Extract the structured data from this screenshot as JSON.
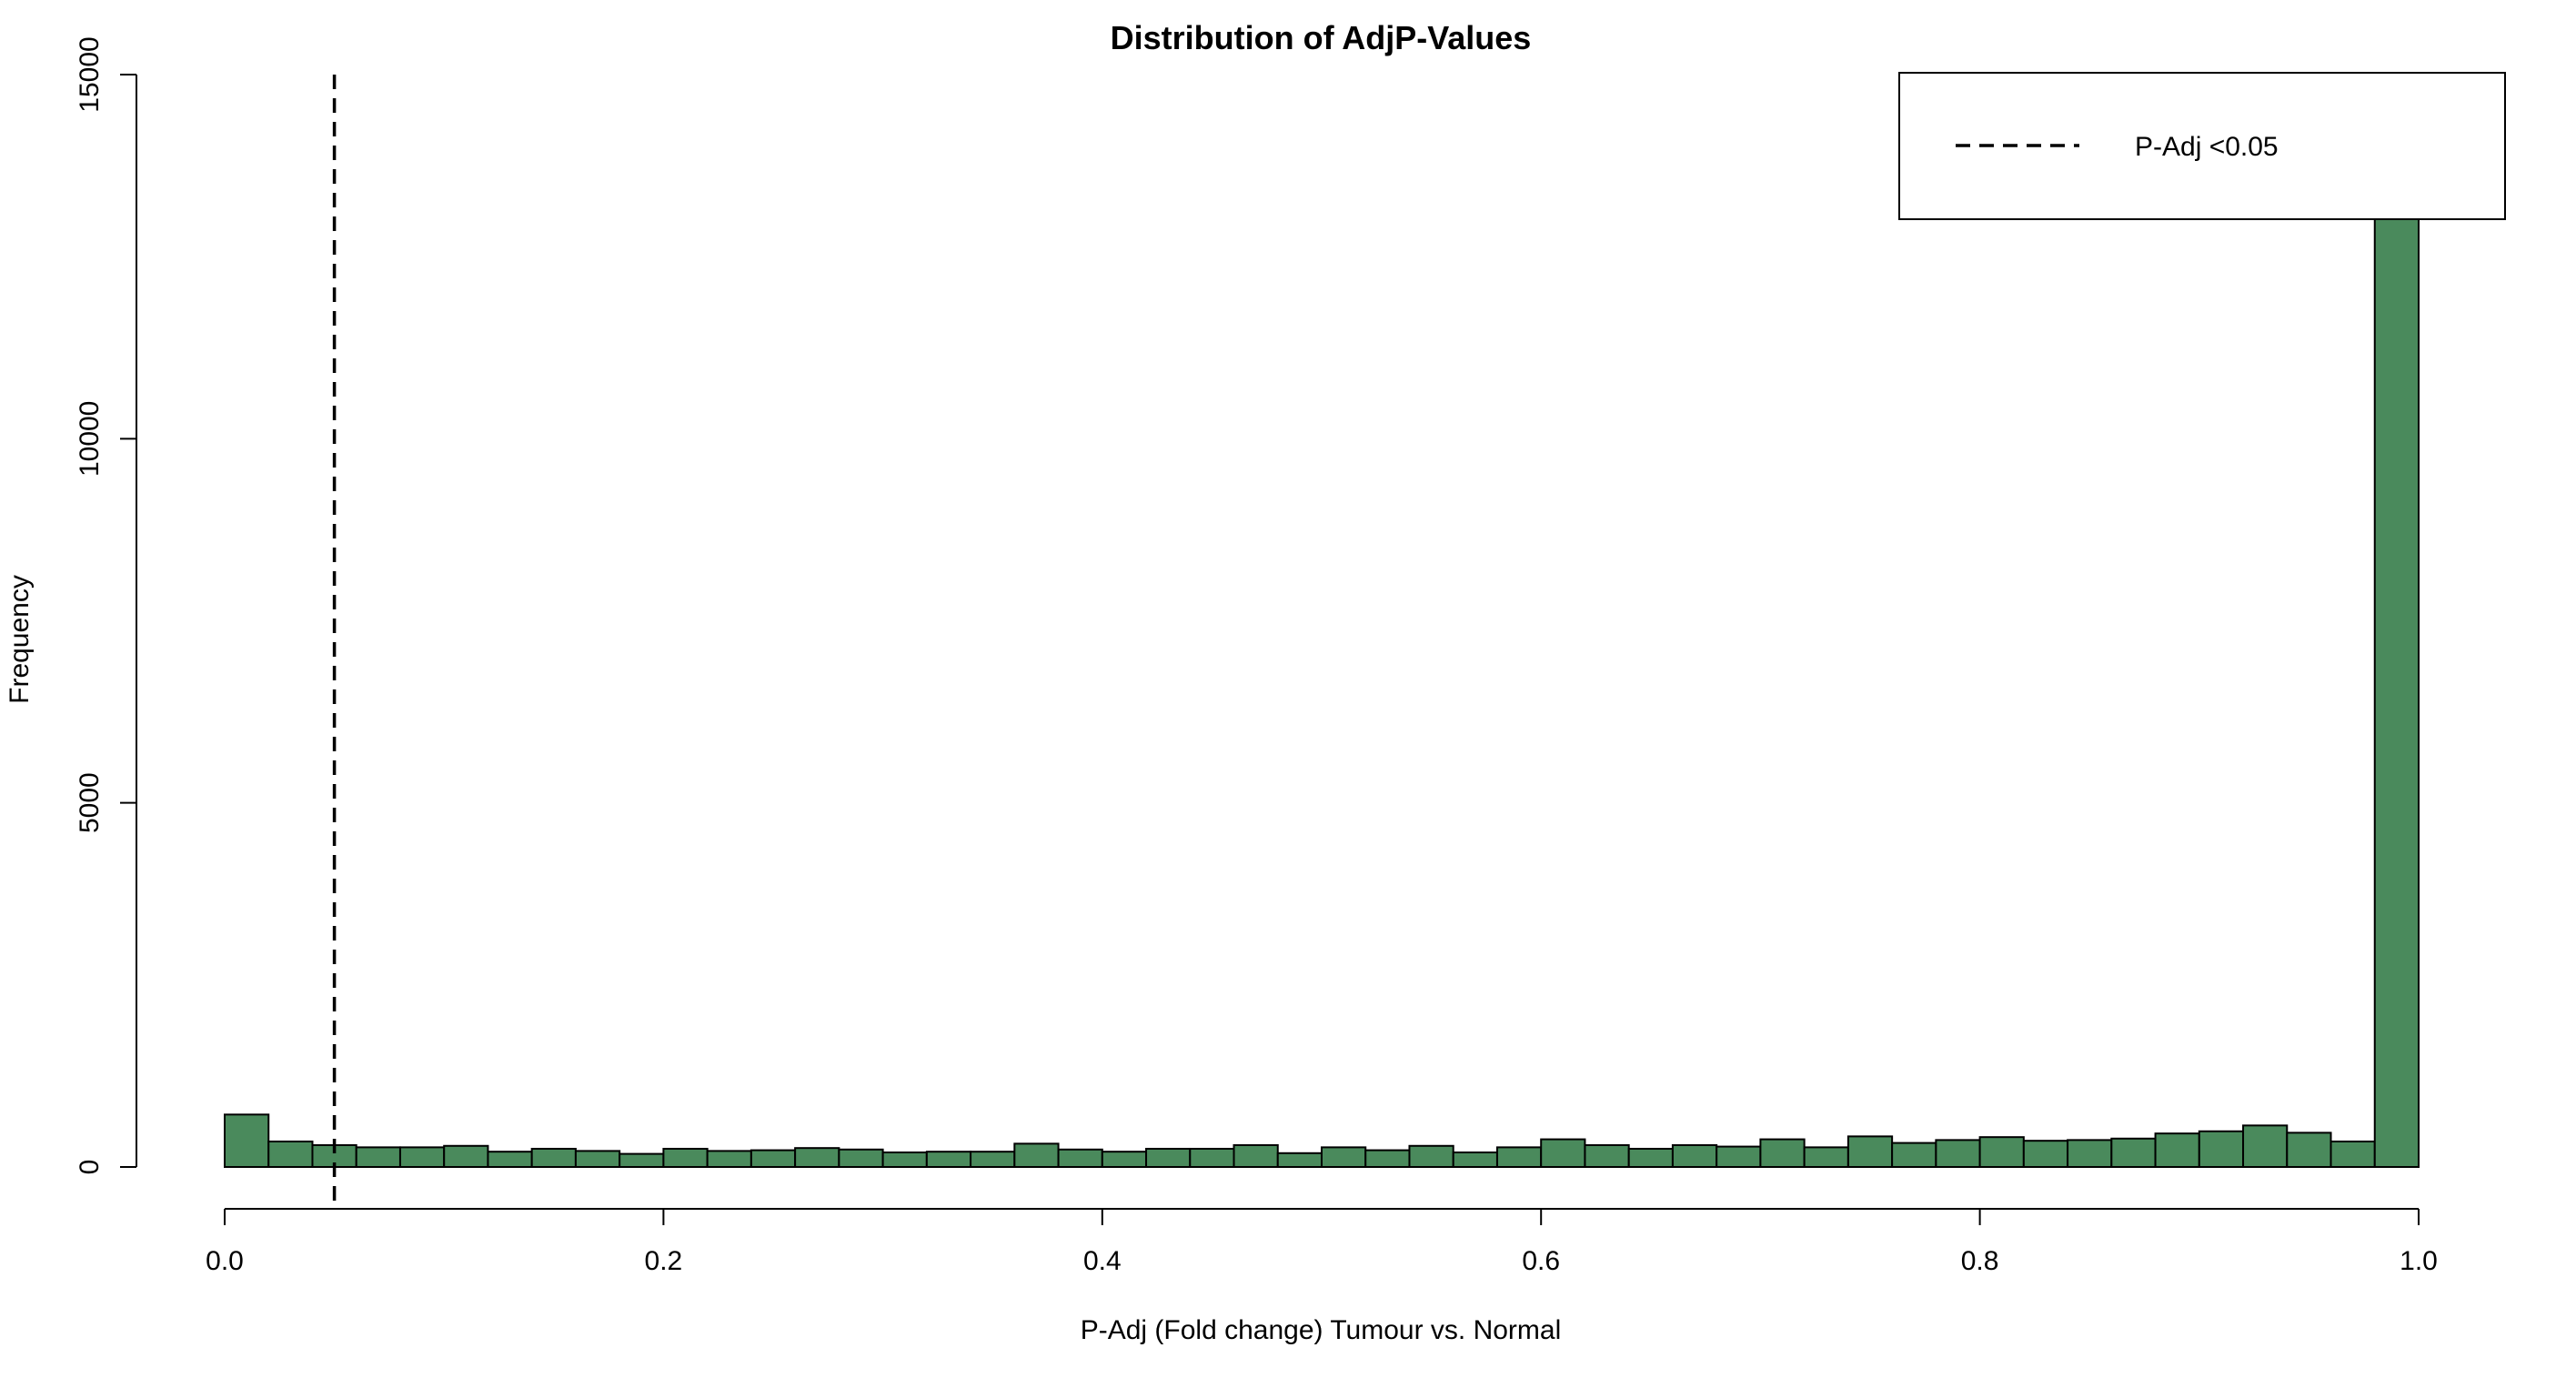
{
  "chart_data": {
    "type": "bar",
    "title": "Distribution of AdjP-Values",
    "xlabel": "P-Adj (Fold change) Tumour vs. Normal",
    "ylabel": "Frequency",
    "xlim": [
      0,
      1
    ],
    "ylim": [
      0,
      15000
    ],
    "x_ticks": [
      "0.0",
      "0.2",
      "0.4",
      "0.6",
      "0.8",
      "1.0"
    ],
    "y_ticks": [
      "0",
      "5000",
      "10000",
      "15000"
    ],
    "bin_width": 0.02,
    "bar_color": "#4a8a5c",
    "bin_starts": [
      0.0,
      0.02,
      0.04,
      0.06,
      0.08,
      0.1,
      0.12,
      0.14,
      0.16,
      0.18,
      0.2,
      0.22,
      0.24,
      0.26,
      0.28,
      0.3,
      0.32,
      0.34,
      0.36,
      0.38,
      0.4,
      0.42,
      0.44,
      0.46,
      0.48,
      0.5,
      0.52,
      0.54,
      0.56,
      0.58,
      0.6,
      0.62,
      0.64,
      0.66,
      0.68,
      0.7,
      0.72,
      0.74,
      0.76,
      0.78,
      0.8,
      0.82,
      0.84,
      0.86,
      0.88,
      0.9,
      0.92,
      0.94,
      0.96,
      0.98
    ],
    "values": [
      720,
      350,
      300,
      270,
      270,
      290,
      210,
      250,
      220,
      180,
      250,
      220,
      230,
      260,
      240,
      200,
      210,
      210,
      320,
      240,
      210,
      250,
      250,
      300,
      190,
      270,
      230,
      290,
      200,
      270,
      380,
      300,
      250,
      300,
      280,
      380,
      270,
      420,
      330,
      370,
      410,
      360,
      370,
      390,
      460,
      490,
      570,
      470,
      350,
      13100
    ],
    "threshold": {
      "x": 0.05,
      "style": "dashed",
      "label": "P-Adj <0.05"
    },
    "legend": {
      "position": "top-right",
      "entries": [
        {
          "label": "P-Adj <0.05",
          "line_style": "dashed"
        }
      ]
    },
    "grid": false
  }
}
